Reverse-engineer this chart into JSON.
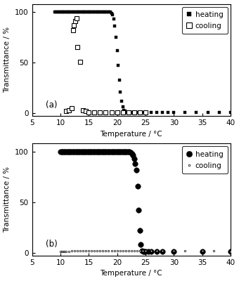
{
  "panel_a": {
    "label": "(a)",
    "heating": {
      "x": [
        9.0,
        9.2,
        9.4,
        9.6,
        9.8,
        10.0,
        10.2,
        10.4,
        10.6,
        10.8,
        11.0,
        11.2,
        11.4,
        11.6,
        11.8,
        12.0,
        12.2,
        12.4,
        12.6,
        12.8,
        13.0,
        13.2,
        13.4,
        13.6,
        13.8,
        14.0,
        14.2,
        14.4,
        14.6,
        14.8,
        15.0,
        15.2,
        15.4,
        15.6,
        15.8,
        16.0,
        16.2,
        16.4,
        16.6,
        16.8,
        17.0,
        17.2,
        17.4,
        17.6,
        17.8,
        18.0,
        18.2,
        18.4,
        18.6,
        18.8,
        19.0,
        19.2,
        19.4,
        19.6,
        19.8,
        20.0,
        20.2,
        20.4,
        20.6,
        20.8,
        21.0,
        21.2,
        21.4,
        21.6,
        21.8,
        22.0,
        22.2,
        22.4,
        22.6,
        22.8,
        23.0,
        23.5,
        24.0,
        24.5,
        25.0,
        26.0,
        27.0,
        28.0,
        29.0,
        30.0,
        32.0,
        34.0,
        36.0,
        38.0,
        40.0
      ],
      "y": [
        100,
        100,
        100,
        100,
        100,
        100,
        100,
        100,
        100,
        100,
        100,
        100,
        100,
        100,
        100,
        100,
        100,
        100,
        100,
        100,
        100,
        100,
        100,
        100,
        100,
        100,
        100,
        100,
        100,
        100,
        100,
        100,
        100,
        100,
        100,
        100,
        100,
        100,
        100,
        100,
        100,
        100,
        100,
        100,
        100,
        100,
        100,
        100,
        100,
        100,
        99,
        97,
        93,
        86,
        75,
        62,
        47,
        33,
        21,
        12,
        6,
        3,
        2,
        1,
        1,
        1,
        1,
        1,
        1,
        1,
        1,
        1,
        1,
        1,
        1,
        1,
        1,
        1,
        1,
        1,
        1,
        1,
        1,
        1,
        1
      ]
    },
    "cooling": {
      "x": [
        11.0,
        11.5,
        12.0,
        12.2,
        12.4,
        12.6,
        12.8,
        13.0,
        13.5,
        14.0,
        14.5,
        15.0,
        16.0,
        17.0,
        18.0,
        19.0,
        20.0,
        21.0,
        22.0,
        23.0,
        24.0,
        25.0
      ],
      "y": [
        2,
        3,
        5,
        82,
        87,
        91,
        94,
        65,
        51,
        3,
        2,
        1,
        1,
        1,
        1,
        1,
        1,
        1,
        1,
        1,
        1,
        1
      ]
    },
    "xlabel": "Temperature / °C",
    "ylabel": "Transmittance / %",
    "xlim": [
      5,
      40
    ],
    "ylim": [
      -3,
      108
    ],
    "xticks": [
      5,
      10,
      15,
      20,
      25,
      30,
      35,
      40
    ],
    "yticks": [
      0,
      50,
      100
    ]
  },
  "panel_b": {
    "label": "(b)",
    "heating": {
      "x": [
        10.0,
        10.2,
        10.4,
        10.6,
        10.8,
        11.0,
        11.2,
        11.4,
        11.6,
        11.8,
        12.0,
        12.2,
        12.4,
        12.6,
        12.8,
        13.0,
        13.2,
        13.4,
        13.6,
        13.8,
        14.0,
        14.2,
        14.4,
        14.6,
        14.8,
        15.0,
        15.2,
        15.4,
        15.6,
        15.8,
        16.0,
        16.2,
        16.4,
        16.6,
        16.8,
        17.0,
        17.2,
        17.4,
        17.6,
        17.8,
        18.0,
        18.2,
        18.4,
        18.6,
        18.8,
        19.0,
        19.2,
        19.4,
        19.6,
        19.8,
        20.0,
        20.2,
        20.4,
        20.6,
        20.8,
        21.0,
        21.2,
        21.4,
        21.6,
        21.8,
        22.0,
        22.2,
        22.4,
        22.6,
        22.8,
        23.0,
        23.2,
        23.4,
        23.6,
        23.8,
        24.0,
        24.2,
        24.4,
        24.6,
        24.8,
        25.0,
        25.5,
        26.0,
        27.0,
        28.0,
        30.0,
        35.0,
        40.0
      ],
      "y": [
        100,
        100,
        100,
        100,
        100,
        100,
        100,
        100,
        100,
        100,
        100,
        100,
        100,
        100,
        100,
        100,
        100,
        100,
        100,
        100,
        100,
        100,
        100,
        100,
        100,
        100,
        100,
        100,
        100,
        100,
        100,
        100,
        100,
        100,
        100,
        100,
        100,
        100,
        100,
        100,
        100,
        100,
        100,
        100,
        100,
        100,
        100,
        100,
        100,
        100,
        100,
        100,
        100,
        100,
        100,
        100,
        100,
        100,
        100,
        100,
        100,
        100,
        99,
        98,
        96,
        93,
        88,
        82,
        66,
        42,
        22,
        8,
        2,
        1,
        1,
        1,
        1,
        1,
        1,
        1,
        1,
        1,
        1
      ]
    },
    "cooling": {
      "x": [
        10.0,
        10.2,
        10.4,
        10.6,
        10.8,
        11.0,
        11.5,
        12.0,
        12.5,
        13.0,
        13.5,
        14.0,
        14.5,
        15.0,
        15.5,
        16.0,
        16.5,
        17.0,
        17.5,
        18.0,
        18.5,
        19.0,
        19.5,
        20.0,
        20.5,
        21.0,
        21.5,
        22.0,
        22.5,
        23.0,
        23.5,
        24.0,
        24.5,
        25.0,
        26.0,
        27.0,
        28.0,
        30.0,
        32.0,
        35.0,
        37.0,
        40.0
      ],
      "y": [
        1,
        1,
        1,
        1,
        1,
        1,
        1,
        2,
        2,
        2,
        2,
        2,
        2,
        2,
        2,
        2,
        2,
        2,
        2,
        2,
        2,
        2,
        2,
        2,
        2,
        2,
        2,
        2,
        2,
        2,
        2,
        2,
        2,
        2,
        2,
        2,
        2,
        2,
        2,
        2,
        2,
        1
      ]
    },
    "xlabel": "Temperature / °C",
    "ylabel": "Transmittance / %",
    "xlim": [
      5,
      40
    ],
    "ylim": [
      -3,
      108
    ],
    "xticks": [
      5,
      10,
      15,
      20,
      25,
      30,
      35,
      40
    ],
    "yticks": [
      0,
      50,
      100
    ]
  },
  "ms_a_heat": 3.0,
  "ms_a_cool": 4.5,
  "ms_b_heat": 5.5,
  "ms_b_cool": 1.8,
  "background_color": "#ffffff"
}
